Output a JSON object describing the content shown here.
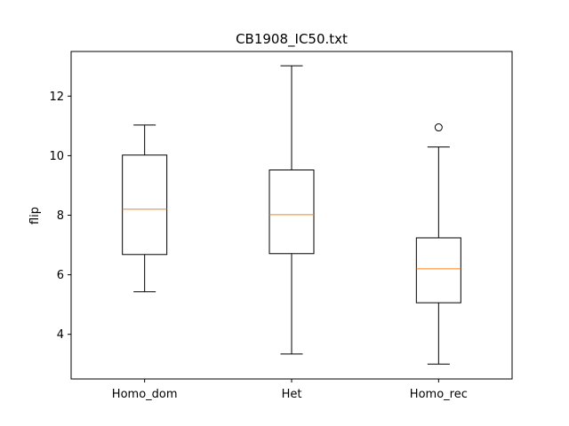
{
  "chart_data": {
    "type": "boxplot",
    "title": "CB1908_IC50.txt",
    "xlabel": "",
    "ylabel": "flip",
    "categories": [
      "Homo_dom",
      "Het",
      "Homo_rec"
    ],
    "boxes": [
      {
        "category": "Homo_dom",
        "whisker_low": 5.43,
        "q1": 6.68,
        "median": 8.2,
        "q3": 10.02,
        "whisker_high": 11.03,
        "outliers": []
      },
      {
        "category": "Het",
        "whisker_low": 3.34,
        "q1": 6.71,
        "median": 8.02,
        "q3": 9.52,
        "whisker_high": 13.02,
        "outliers": []
      },
      {
        "category": "Homo_rec",
        "whisker_low": 3.0,
        "q1": 5.06,
        "median": 6.2,
        "q3": 7.24,
        "whisker_high": 10.29,
        "outliers": [
          10.95
        ]
      }
    ],
    "ylim": [
      2.5,
      13.5
    ],
    "yticks": [
      4,
      6,
      8,
      10,
      12
    ],
    "grid": false,
    "colors": {
      "box": "#000000",
      "median": "#ff7f0e",
      "outlier": "#000000"
    }
  }
}
